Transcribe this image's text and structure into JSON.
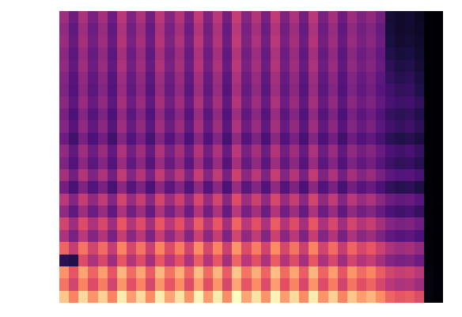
{
  "chart_data": {
    "type": "heatmap",
    "tick_labels": false,
    "cells": [
      [
        40,
        32,
        42,
        34,
        41,
        32,
        44,
        35,
        42,
        33,
        44,
        36,
        43,
        34,
        45,
        35,
        44,
        33,
        46,
        36,
        43,
        34,
        45,
        35,
        42,
        33,
        44,
        34,
        41,
        32,
        40,
        35,
        38,
        33,
        14,
        12,
        13,
        10,
        2,
        1
      ],
      [
        38,
        30,
        40,
        32,
        39,
        30,
        42,
        33,
        40,
        31,
        42,
        34,
        41,
        32,
        43,
        33,
        42,
        31,
        44,
        34,
        41,
        32,
        43,
        33,
        40,
        31,
        42,
        32,
        39,
        30,
        38,
        33,
        36,
        31,
        15,
        12,
        13,
        11,
        2,
        1
      ],
      [
        39,
        31,
        41,
        33,
        40,
        31,
        43,
        34,
        41,
        32,
        43,
        35,
        42,
        33,
        44,
        34,
        43,
        32,
        45,
        35,
        42,
        33,
        44,
        34,
        41,
        32,
        43,
        33,
        40,
        31,
        39,
        34,
        37,
        32,
        16,
        13,
        14,
        12,
        2,
        1
      ],
      [
        37,
        29,
        39,
        31,
        38,
        29,
        41,
        32,
        39,
        30,
        41,
        33,
        40,
        31,
        42,
        32,
        41,
        30,
        43,
        33,
        40,
        31,
        42,
        32,
        39,
        30,
        41,
        31,
        38,
        29,
        37,
        32,
        35,
        30,
        18,
        15,
        16,
        13,
        2,
        1
      ],
      [
        38,
        30,
        40,
        32,
        39,
        30,
        42,
        33,
        40,
        31,
        42,
        34,
        41,
        32,
        43,
        33,
        42,
        31,
        44,
        34,
        41,
        32,
        43,
        33,
        40,
        31,
        42,
        32,
        39,
        30,
        38,
        33,
        36,
        31,
        20,
        17,
        18,
        14,
        2,
        1
      ],
      [
        36,
        28,
        38,
        30,
        37,
        28,
        40,
        31,
        38,
        29,
        40,
        32,
        39,
        30,
        41,
        31,
        40,
        29,
        42,
        32,
        39,
        30,
        41,
        31,
        38,
        29,
        40,
        30,
        37,
        28,
        36,
        31,
        34,
        29,
        22,
        19,
        20,
        16,
        2,
        1
      ],
      [
        35,
        27,
        37,
        29,
        36,
        27,
        39,
        30,
        37,
        28,
        39,
        31,
        38,
        29,
        40,
        30,
        39,
        28,
        41,
        31,
        38,
        29,
        40,
        30,
        37,
        28,
        39,
        29,
        36,
        27,
        35,
        30,
        33,
        28,
        24,
        21,
        22,
        18,
        2,
        1
      ],
      [
        37,
        29,
        39,
        31,
        38,
        29,
        41,
        32,
        39,
        30,
        41,
        33,
        40,
        31,
        42,
        32,
        41,
        30,
        43,
        33,
        40,
        31,
        42,
        32,
        39,
        30,
        41,
        31,
        38,
        29,
        37,
        32,
        35,
        30,
        25,
        23,
        24,
        21,
        2,
        1
      ],
      [
        34,
        26,
        36,
        28,
        35,
        26,
        38,
        29,
        36,
        27,
        38,
        30,
        37,
        28,
        39,
        29,
        38,
        27,
        40,
        30,
        37,
        28,
        39,
        29,
        36,
        27,
        38,
        28,
        35,
        26,
        34,
        29,
        32,
        27,
        22,
        20,
        21,
        18,
        2,
        1
      ],
      [
        36,
        28,
        38,
        30,
        37,
        28,
        40,
        31,
        38,
        29,
        40,
        32,
        39,
        30,
        41,
        31,
        40,
        29,
        42,
        32,
        39,
        30,
        41,
        31,
        38,
        29,
        40,
        30,
        37,
        28,
        36,
        31,
        34,
        29,
        24,
        22,
        23,
        20,
        2,
        1
      ],
      [
        32,
        24,
        34,
        26,
        33,
        24,
        36,
        27,
        34,
        25,
        36,
        28,
        35,
        26,
        37,
        27,
        36,
        25,
        38,
        28,
        35,
        26,
        37,
        27,
        34,
        25,
        36,
        26,
        33,
        24,
        32,
        27,
        30,
        25,
        20,
        18,
        19,
        16,
        2,
        1
      ],
      [
        38,
        30,
        40,
        32,
        39,
        30,
        42,
        33,
        40,
        31,
        42,
        34,
        41,
        32,
        43,
        33,
        42,
        31,
        44,
        34,
        41,
        32,
        43,
        33,
        40,
        31,
        42,
        32,
        39,
        30,
        38,
        33,
        36,
        31,
        26,
        24,
        25,
        22,
        3,
        1
      ],
      [
        35,
        27,
        37,
        29,
        36,
        27,
        39,
        30,
        37,
        28,
        39,
        31,
        38,
        29,
        40,
        30,
        39,
        28,
        41,
        31,
        38,
        29,
        40,
        30,
        37,
        28,
        39,
        29,
        36,
        27,
        35,
        30,
        33,
        28,
        23,
        21,
        22,
        19,
        3,
        1
      ],
      [
        41,
        33,
        43,
        35,
        42,
        33,
        45,
        36,
        43,
        34,
        45,
        37,
        44,
        35,
        46,
        36,
        45,
        34,
        47,
        37,
        44,
        35,
        46,
        36,
        43,
        34,
        45,
        35,
        42,
        33,
        41,
        36,
        39,
        34,
        29,
        27,
        28,
        25,
        3,
        1
      ],
      [
        33,
        25,
        35,
        27,
        34,
        25,
        37,
        28,
        35,
        26,
        37,
        29,
        36,
        27,
        38,
        28,
        37,
        26,
        39,
        29,
        36,
        27,
        38,
        28,
        35,
        26,
        37,
        27,
        34,
        25,
        33,
        28,
        31,
        26,
        21,
        19,
        20,
        17,
        3,
        1
      ],
      [
        44,
        36,
        46,
        38,
        45,
        36,
        48,
        39,
        46,
        37,
        48,
        40,
        47,
        38,
        49,
        39,
        48,
        37,
        50,
        40,
        47,
        38,
        49,
        39,
        46,
        37,
        48,
        38,
        45,
        36,
        44,
        39,
        42,
        37,
        32,
        30,
        31,
        28,
        3,
        2
      ],
      [
        38,
        30,
        40,
        32,
        39,
        30,
        42,
        33,
        40,
        31,
        42,
        34,
        41,
        32,
        43,
        33,
        42,
        31,
        44,
        34,
        41,
        32,
        43,
        33,
        40,
        31,
        42,
        32,
        39,
        30,
        38,
        33,
        36,
        31,
        26,
        24,
        25,
        22,
        3,
        1
      ],
      [
        48,
        40,
        50,
        42,
        49,
        40,
        52,
        43,
        50,
        41,
        52,
        44,
        51,
        42,
        53,
        43,
        52,
        41,
        54,
        44,
        51,
        42,
        53,
        43,
        50,
        41,
        52,
        42,
        49,
        40,
        48,
        43,
        46,
        41,
        36,
        34,
        35,
        32,
        4,
        2
      ],
      [
        42,
        34,
        44,
        36,
        43,
        34,
        46,
        37,
        44,
        35,
        46,
        38,
        45,
        36,
        47,
        37,
        46,
        35,
        48,
        38,
        45,
        36,
        47,
        37,
        44,
        35,
        46,
        36,
        43,
        34,
        42,
        37,
        40,
        35,
        30,
        28,
        29,
        26,
        3,
        1
      ],
      [
        54,
        46,
        56,
        48,
        55,
        46,
        58,
        49,
        56,
        47,
        58,
        50,
        57,
        48,
        59,
        49,
        58,
        47,
        60,
        50,
        57,
        48,
        59,
        49,
        56,
        47,
        58,
        48,
        55,
        46,
        54,
        49,
        52,
        47,
        42,
        40,
        41,
        38,
        4,
        2
      ],
      [
        20,
        18,
        50,
        42,
        49,
        40,
        52,
        43,
        50,
        41,
        52,
        44,
        51,
        42,
        53,
        43,
        52,
        41,
        54,
        44,
        51,
        42,
        53,
        43,
        50,
        41,
        52,
        42,
        49,
        40,
        48,
        43,
        46,
        41,
        36,
        34,
        35,
        32,
        4,
        2
      ],
      [
        60,
        52,
        62,
        54,
        61,
        52,
        64,
        55,
        62,
        53,
        64,
        56,
        63,
        54,
        65,
        55,
        64,
        53,
        66,
        56,
        63,
        54,
        65,
        55,
        62,
        53,
        64,
        54,
        61,
        52,
        60,
        55,
        58,
        53,
        48,
        46,
        47,
        44,
        5,
        2
      ],
      [
        56,
        48,
        58,
        50,
        57,
        48,
        60,
        51,
        58,
        49,
        60,
        52,
        59,
        50,
        61,
        51,
        60,
        49,
        62,
        52,
        59,
        50,
        61,
        51,
        58,
        49,
        60,
        50,
        57,
        48,
        56,
        51,
        54,
        49,
        44,
        42,
        43,
        40,
        5,
        2
      ],
      [
        66,
        58,
        68,
        60,
        67,
        58,
        70,
        61,
        68,
        59,
        70,
        62,
        69,
        60,
        71,
        61,
        70,
        59,
        72,
        62,
        69,
        60,
        71,
        61,
        68,
        59,
        70,
        60,
        67,
        58,
        66,
        61,
        64,
        59,
        54,
        52,
        53,
        50,
        5,
        3
      ]
    ]
  }
}
